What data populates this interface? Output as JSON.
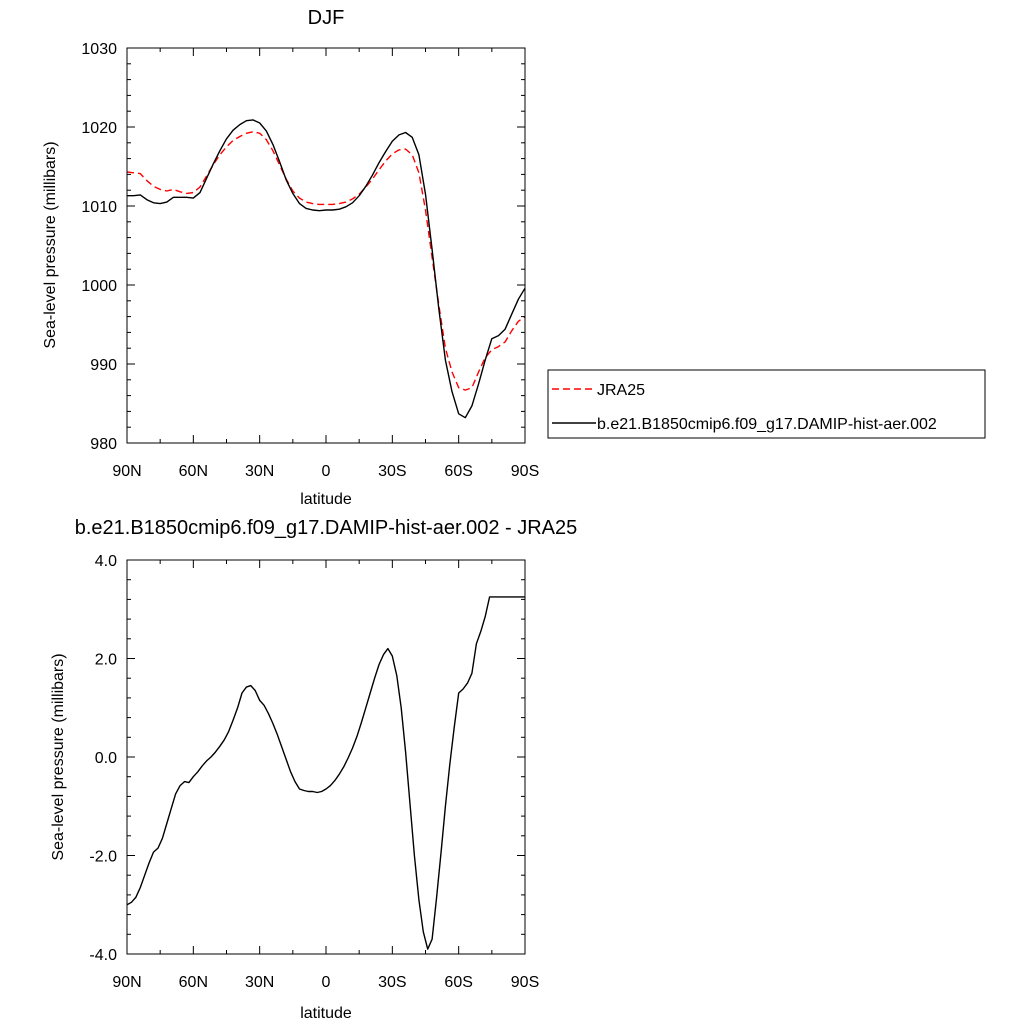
{
  "chart_data": [
    {
      "type": "line",
      "title": "DJF",
      "xlabel": "latitude",
      "ylabel": "Sea-level pressure (millibars)",
      "xlim": [
        90,
        -90
      ],
      "ylim": [
        980,
        1030
      ],
      "x_ticks": [
        90,
        60,
        30,
        0,
        -30,
        -60,
        -90
      ],
      "x_tick_labels": [
        "90N",
        "60N",
        "30N",
        "0",
        "30S",
        "60S",
        "90S"
      ],
      "y_ticks": [
        980,
        990,
        1000,
        1010,
        1020,
        1030
      ],
      "y_tick_labels": [
        "980",
        "990",
        "1000",
        "1010",
        "1020",
        "1030"
      ],
      "grid": false,
      "legend_position": "right",
      "series": [
        {
          "name": "JRA25",
          "color": "#ff0000",
          "dash": "dashed",
          "x": [
            90,
            87,
            84,
            81,
            78,
            75,
            72,
            69,
            66,
            63,
            60,
            57,
            54,
            51,
            48,
            45,
            42,
            39,
            36,
            33,
            30,
            27,
            24,
            21,
            18,
            15,
            12,
            9,
            6,
            3,
            0,
            -3,
            -6,
            -9,
            -12,
            -15,
            -18,
            -21,
            -24,
            -27,
            -30,
            -33,
            -36,
            -39,
            -42,
            -45,
            -48,
            -51,
            -54,
            -57,
            -60,
            -63,
            -66,
            -69,
            -72,
            -75,
            -78,
            -81,
            -84,
            -87,
            -90
          ],
          "y": [
            1014.3,
            1014.2,
            1014.1,
            1013.2,
            1012.5,
            1012.1,
            1011.9,
            1012.1,
            1011.8,
            1011.6,
            1011.7,
            1012.4,
            1013.8,
            1015.2,
            1016.5,
            1017.5,
            1018.3,
            1018.8,
            1019.2,
            1019.4,
            1019.2,
            1018.4,
            1017.0,
            1015.2,
            1013.4,
            1011.9,
            1011.0,
            1010.5,
            1010.3,
            1010.2,
            1010.2,
            1010.2,
            1010.3,
            1010.5,
            1010.9,
            1011.5,
            1012.4,
            1013.4,
            1014.6,
            1015.7,
            1016.6,
            1017.1,
            1017.2,
            1016.5,
            1014.2,
            1009.5,
            1003.5,
            997.5,
            992.0,
            989.0,
            987.0,
            986.7,
            987.0,
            989.0,
            990.8,
            991.8,
            992.2,
            992.8,
            994.2,
            995.4,
            996.0
          ]
        },
        {
          "name": "b.e21.B1850cmip6.f09_g17.DAMIP-hist-aer.002",
          "color": "#000000",
          "dash": "solid",
          "x": [
            90,
            87,
            84,
            81,
            78,
            75,
            72,
            69,
            66,
            63,
            60,
            57,
            54,
            51,
            48,
            45,
            42,
            39,
            36,
            33,
            30,
            27,
            24,
            21,
            18,
            15,
            12,
            9,
            6,
            3,
            0,
            -3,
            -6,
            -9,
            -12,
            -15,
            -18,
            -21,
            -24,
            -27,
            -30,
            -33,
            -36,
            -39,
            -42,
            -45,
            -48,
            -51,
            -54,
            -57,
            -60,
            -63,
            -66,
            -69,
            -72,
            -75,
            -78,
            -81,
            -84,
            -87,
            -90
          ],
          "y": [
            1011.3,
            1011.3,
            1011.4,
            1010.8,
            1010.4,
            1010.3,
            1010.5,
            1011.1,
            1011.1,
            1011.1,
            1011.0,
            1011.7,
            1013.5,
            1015.3,
            1017.0,
            1018.5,
            1019.6,
            1020.3,
            1020.8,
            1020.9,
            1020.5,
            1019.5,
            1017.8,
            1015.6,
            1013.3,
            1011.6,
            1010.3,
            1009.7,
            1009.5,
            1009.4,
            1009.5,
            1009.5,
            1009.6,
            1009.9,
            1010.4,
            1011.3,
            1012.5,
            1013.9,
            1015.5,
            1016.9,
            1018.2,
            1019.0,
            1019.3,
            1018.7,
            1016.5,
            1011.5,
            1004.5,
            997.0,
            990.5,
            986.5,
            983.7,
            983.2,
            984.7,
            987.5,
            990.5,
            993.2,
            993.6,
            994.4,
            996.3,
            998.2,
            999.6
          ]
        }
      ]
    },
    {
      "type": "line",
      "title": "b.e21.B1850cmip6.f09_g17.DAMIP-hist-aer.002 - JRA25",
      "xlabel": "latitude",
      "ylabel": "Sea-level pressure (millibars)",
      "xlim": [
        90,
        -90
      ],
      "ylim": [
        -4.0,
        4.0
      ],
      "x_ticks": [
        90,
        60,
        30,
        0,
        -30,
        -60,
        -90
      ],
      "x_tick_labels": [
        "90N",
        "60N",
        "30N",
        "0",
        "30S",
        "60S",
        "90S"
      ],
      "y_ticks": [
        -4,
        -2,
        0,
        2,
        4
      ],
      "y_tick_labels": [
        "-4.0",
        "-2.0",
        "0.0",
        "2.0",
        "4.0"
      ],
      "grid": false,
      "series": [
        {
          "color": "#000000",
          "dash": "solid",
          "x": [
            90,
            88,
            86,
            84,
            82,
            80,
            78,
            76,
            74,
            72,
            70,
            68,
            66,
            64,
            62,
            60,
            58,
            56,
            54,
            52,
            50,
            48,
            46,
            44,
            42,
            40,
            38,
            36,
            34,
            32,
            30,
            28,
            26,
            24,
            22,
            20,
            18,
            16,
            14,
            12,
            10,
            8,
            6,
            4,
            2,
            0,
            -2,
            -4,
            -6,
            -8,
            -10,
            -12,
            -14,
            -16,
            -18,
            -20,
            -22,
            -24,
            -26,
            -28,
            -30,
            -32,
            -34,
            -36,
            -38,
            -40,
            -42,
            -44,
            -46,
            -48,
            -50,
            -52,
            -54,
            -56,
            -58,
            -60,
            -62,
            -64,
            -66,
            -68,
            -70,
            -72,
            -74,
            -76,
            -78,
            -80,
            -82,
            -84,
            -86,
            -88,
            -90
          ],
          "y": [
            -3.0,
            -2.95,
            -2.85,
            -2.65,
            -2.4,
            -2.15,
            -1.93,
            -1.85,
            -1.65,
            -1.35,
            -1.05,
            -0.75,
            -0.58,
            -0.5,
            -0.52,
            -0.4,
            -0.3,
            -0.18,
            -0.08,
            0.0,
            0.1,
            0.22,
            0.35,
            0.52,
            0.75,
            1.0,
            1.3,
            1.42,
            1.45,
            1.35,
            1.15,
            1.05,
            0.88,
            0.68,
            0.45,
            0.2,
            -0.05,
            -0.3,
            -0.5,
            -0.65,
            -0.68,
            -0.7,
            -0.7,
            -0.72,
            -0.7,
            -0.65,
            -0.58,
            -0.48,
            -0.35,
            -0.2,
            -0.02,
            0.18,
            0.42,
            0.7,
            1.0,
            1.3,
            1.6,
            1.88,
            2.08,
            2.2,
            2.05,
            1.65,
            1.0,
            0.1,
            -0.95,
            -2.0,
            -2.9,
            -3.55,
            -3.9,
            -3.7,
            -2.85,
            -1.95,
            -1.0,
            -0.15,
            0.6,
            1.3,
            1.38,
            1.5,
            1.7,
            2.3,
            2.55,
            2.85,
            3.25,
            3.25,
            3.25,
            3.25,
            3.25,
            3.25,
            3.25,
            3.25,
            3.25
          ]
        }
      ]
    }
  ]
}
